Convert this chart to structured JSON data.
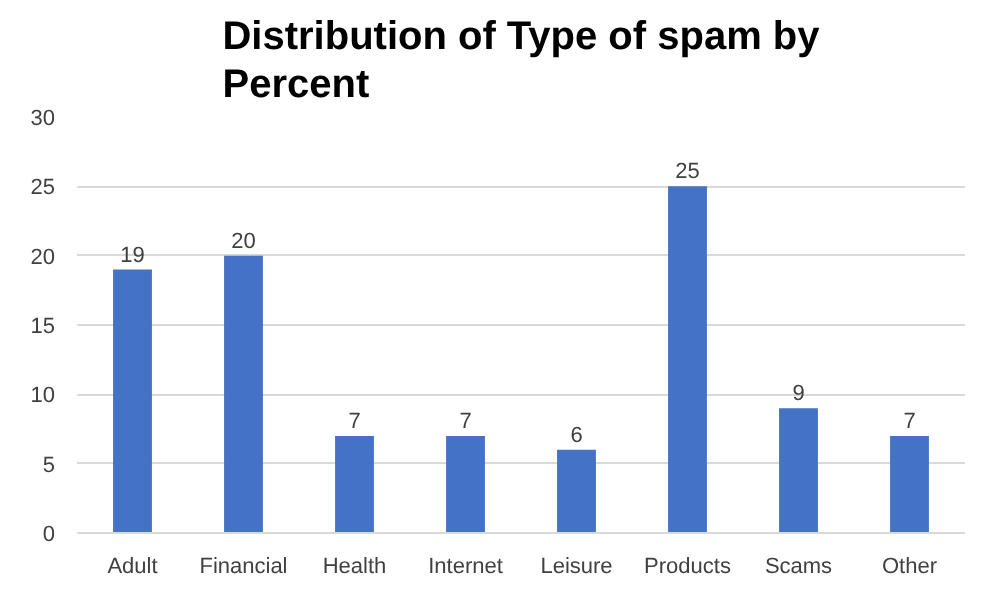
{
  "chart_data": {
    "type": "bar",
    "title": "Distribution of Type of spam by Percent",
    "categories": [
      "Adult",
      "Financial",
      "Health",
      "Internet",
      "Leisure",
      "Products",
      "Scams",
      "Other"
    ],
    "values": [
      19,
      20,
      7,
      7,
      6,
      25,
      9,
      7
    ],
    "color": "#4472c4",
    "ylim": [
      0,
      30
    ],
    "yticks": [
      0,
      5,
      10,
      15,
      20,
      25,
      30
    ],
    "grid": "y",
    "data_labels": true
  }
}
